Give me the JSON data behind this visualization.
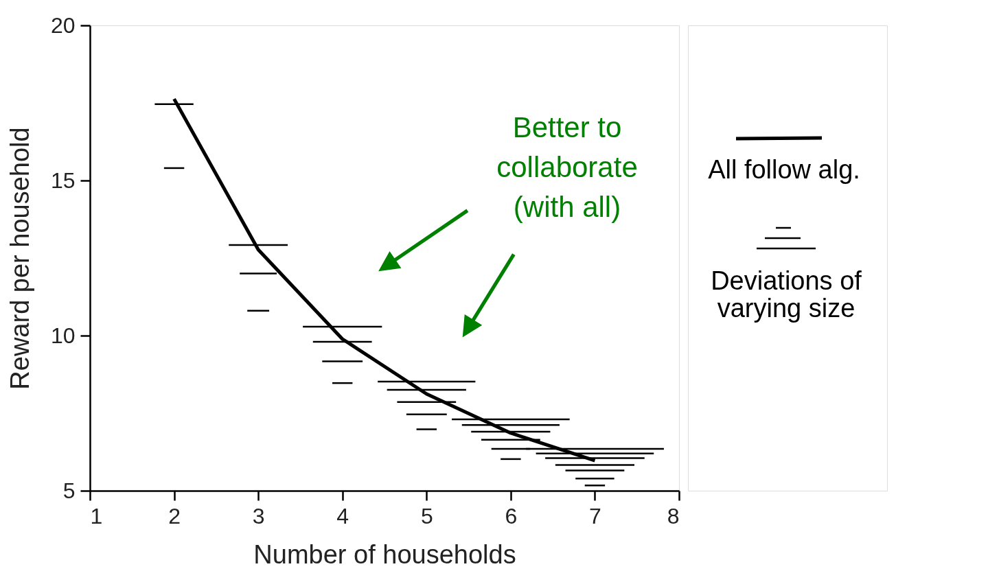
{
  "chart_data": {
    "type": "line",
    "xlabel": "Number of households",
    "ylabel": "Reward per household",
    "xlim": [
      1,
      8
    ],
    "xticks": [
      1,
      2,
      3,
      4,
      5,
      6,
      7,
      8
    ],
    "ylim": [
      5,
      20
    ],
    "yticks": [
      5,
      10,
      15,
      20
    ],
    "grid": false,
    "legend": "right",
    "line_style": "solid",
    "marker": "none",
    "annotations": [
      "Better to\ncollaborate\n(with all)"
    ],
    "series": [
      {
        "name": "All follow alg.",
        "color": "#000000",
        "x": [
          2,
          3,
          4,
          5,
          6,
          7
        ],
        "values": [
          17.63,
          12.77,
          9.89,
          8.12,
          6.86,
          5.97
        ]
      },
      {
        "name": "Deviations of\nvarying size",
        "type": "line",
        "color": "#000000",
        "x": [
          1.77,
          2.23
        ],
        "values": [
          17.46,
          17.46
        ]
      },
      {
        "type": "line",
        "color": "#000000",
        "x": [
          1.88,
          2.12
        ],
        "values": [
          15.4,
          15.4
        ]
      },
      {
        "type": "line",
        "color": "#000000",
        "x": [
          2.65,
          3.35
        ],
        "values": [
          12.92,
          12.92
        ]
      },
      {
        "type": "line",
        "color": "#000000",
        "x": [
          2.78,
          3.22
        ],
        "values": [
          12.0,
          12.0
        ]
      },
      {
        "type": "line",
        "color": "#000000",
        "x": [
          2.87,
          3.13
        ],
        "values": [
          10.8,
          10.8
        ]
      },
      {
        "type": "line",
        "color": "#000000",
        "x": [
          3.53,
          4.47
        ],
        "values": [
          10.29,
          10.29
        ]
      },
      {
        "type": "line",
        "color": "#000000",
        "x": [
          3.65,
          4.35
        ],
        "values": [
          9.8,
          9.8
        ]
      },
      {
        "type": "line",
        "color": "#000000",
        "x": [
          3.76,
          4.24
        ],
        "values": [
          9.17,
          9.17
        ]
      },
      {
        "type": "line",
        "color": "#000000",
        "x": [
          3.88,
          4.12
        ],
        "values": [
          8.47,
          8.47
        ]
      },
      {
        "type": "line",
        "color": "#000000",
        "x": [
          4.42,
          5.58
        ],
        "values": [
          8.52,
          8.52
        ]
      },
      {
        "type": "line",
        "color": "#000000",
        "x": [
          4.53,
          5.47
        ],
        "values": [
          8.25,
          8.25
        ]
      },
      {
        "type": "line",
        "color": "#000000",
        "x": [
          4.65,
          5.35
        ],
        "values": [
          7.86,
          7.86
        ]
      },
      {
        "type": "line",
        "color": "#000000",
        "x": [
          4.76,
          5.24
        ],
        "values": [
          7.46,
          7.46
        ]
      },
      {
        "type": "line",
        "color": "#000000",
        "x": [
          4.88,
          5.12
        ],
        "values": [
          6.98,
          6.98
        ]
      },
      {
        "type": "line",
        "color": "#000000",
        "x": [
          5.3,
          6.7
        ],
        "values": [
          7.3,
          7.3
        ]
      },
      {
        "type": "line",
        "color": "#000000",
        "x": [
          5.42,
          6.58
        ],
        "values": [
          7.12,
          7.12
        ]
      },
      {
        "type": "line",
        "color": "#000000",
        "x": [
          5.53,
          6.47
        ],
        "values": [
          6.9,
          6.9
        ]
      },
      {
        "type": "line",
        "color": "#000000",
        "x": [
          5.65,
          6.35
        ],
        "values": [
          6.64,
          6.64
        ]
      },
      {
        "type": "line",
        "color": "#000000",
        "x": [
          5.77,
          6.23
        ],
        "values": [
          6.35,
          6.35
        ]
      },
      {
        "type": "line",
        "color": "#000000",
        "x": [
          5.88,
          6.12
        ],
        "values": [
          6.02,
          6.02
        ]
      },
      {
        "type": "line",
        "color": "#000000",
        "x": [
          6.18,
          7.82
        ],
        "values": [
          6.35,
          6.35
        ]
      },
      {
        "type": "line",
        "color": "#000000",
        "x": [
          6.3,
          7.7
        ],
        "values": [
          6.2,
          6.2
        ]
      },
      {
        "type": "line",
        "color": "#000000",
        "x": [
          6.41,
          7.59
        ],
        "values": [
          6.05,
          6.05
        ]
      },
      {
        "type": "line",
        "color": "#000000",
        "x": [
          6.53,
          7.47
        ],
        "values": [
          5.83,
          5.83
        ]
      },
      {
        "type": "line",
        "color": "#000000",
        "x": [
          6.65,
          7.35
        ],
        "values": [
          5.65,
          5.65
        ]
      },
      {
        "type": "line",
        "color": "#000000",
        "x": [
          6.77,
          7.23
        ],
        "values": [
          5.39,
          5.39
        ]
      },
      {
        "type": "line",
        "color": "#000000",
        "x": [
          6.88,
          7.12
        ],
        "values": [
          5.17,
          5.17
        ]
      }
    ]
  }
}
